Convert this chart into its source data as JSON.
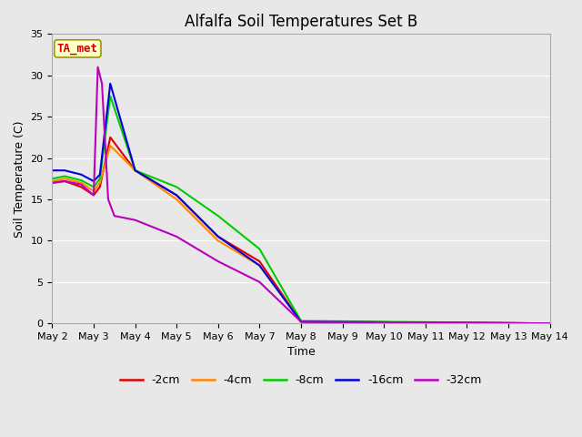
{
  "title": "Alfalfa Soil Temperatures Set B",
  "xlabel": "Time",
  "ylabel": "Soil Temperature (C)",
  "xlim": [
    0,
    12
  ],
  "ylim": [
    0,
    35
  ],
  "yticks": [
    0,
    5,
    10,
    15,
    20,
    25,
    30,
    35
  ],
  "xtick_labels": [
    "May 2",
    "May 3",
    "May 4",
    "May 5",
    "May 6",
    "May 7",
    "May 8",
    "May 9",
    "May 10",
    "May 11",
    "May 12",
    "May 13",
    "May 14"
  ],
  "annotation_label": "TA_met",
  "annotation_color": "#cc0000",
  "annotation_bg": "#ffffcc",
  "annotation_edge": "#999900",
  "series": {
    "-2cm": {
      "color": "#dd0000",
      "x": [
        0,
        0.3,
        0.7,
        1.0,
        1.15,
        1.4,
        2.0,
        3.0,
        4.0,
        5.0,
        6.0,
        12.0
      ],
      "y": [
        17.0,
        17.2,
        16.5,
        15.5,
        16.5,
        22.5,
        18.5,
        15.5,
        10.5,
        7.5,
        0.2,
        0.0
      ]
    },
    "-4cm": {
      "color": "#ff8800",
      "x": [
        0,
        0.3,
        0.7,
        1.0,
        1.15,
        1.4,
        2.0,
        3.0,
        4.0,
        5.0,
        6.0,
        12.0
      ],
      "y": [
        17.2,
        17.5,
        17.0,
        16.0,
        17.0,
        21.5,
        18.5,
        15.0,
        10.0,
        7.0,
        0.2,
        0.0
      ]
    },
    "-8cm": {
      "color": "#00cc00",
      "x": [
        0,
        0.3,
        0.7,
        1.0,
        1.15,
        1.4,
        2.0,
        3.0,
        4.0,
        5.0,
        6.0,
        12.0
      ],
      "y": [
        17.5,
        17.8,
        17.3,
        16.5,
        17.5,
        27.5,
        18.5,
        16.5,
        13.0,
        9.0,
        0.3,
        0.0
      ]
    },
    "-16cm": {
      "color": "#0000dd",
      "x": [
        0,
        0.3,
        0.7,
        1.0,
        1.15,
        1.4,
        2.0,
        3.0,
        4.0,
        5.0,
        6.0,
        12.0
      ],
      "y": [
        18.5,
        18.5,
        18.0,
        17.2,
        18.0,
        29.0,
        18.5,
        15.5,
        10.5,
        7.0,
        0.2,
        0.0
      ]
    },
    "-32cm": {
      "color": "#bb00bb",
      "x": [
        0,
        0.3,
        0.7,
        1.0,
        1.1,
        1.2,
        1.35,
        1.5,
        2.0,
        3.0,
        4.0,
        5.0,
        6.0,
        12.0
      ],
      "y": [
        17.0,
        17.2,
        16.8,
        15.5,
        31.0,
        29.0,
        15.0,
        13.0,
        12.5,
        10.5,
        7.5,
        5.0,
        0.2,
        0.0
      ]
    }
  },
  "background_color": "#e8e8e8",
  "plot_bg": "#e8e8e8",
  "grid_color": "#ffffff",
  "title_fontsize": 12,
  "axis_label_fontsize": 9,
  "tick_fontsize": 8
}
